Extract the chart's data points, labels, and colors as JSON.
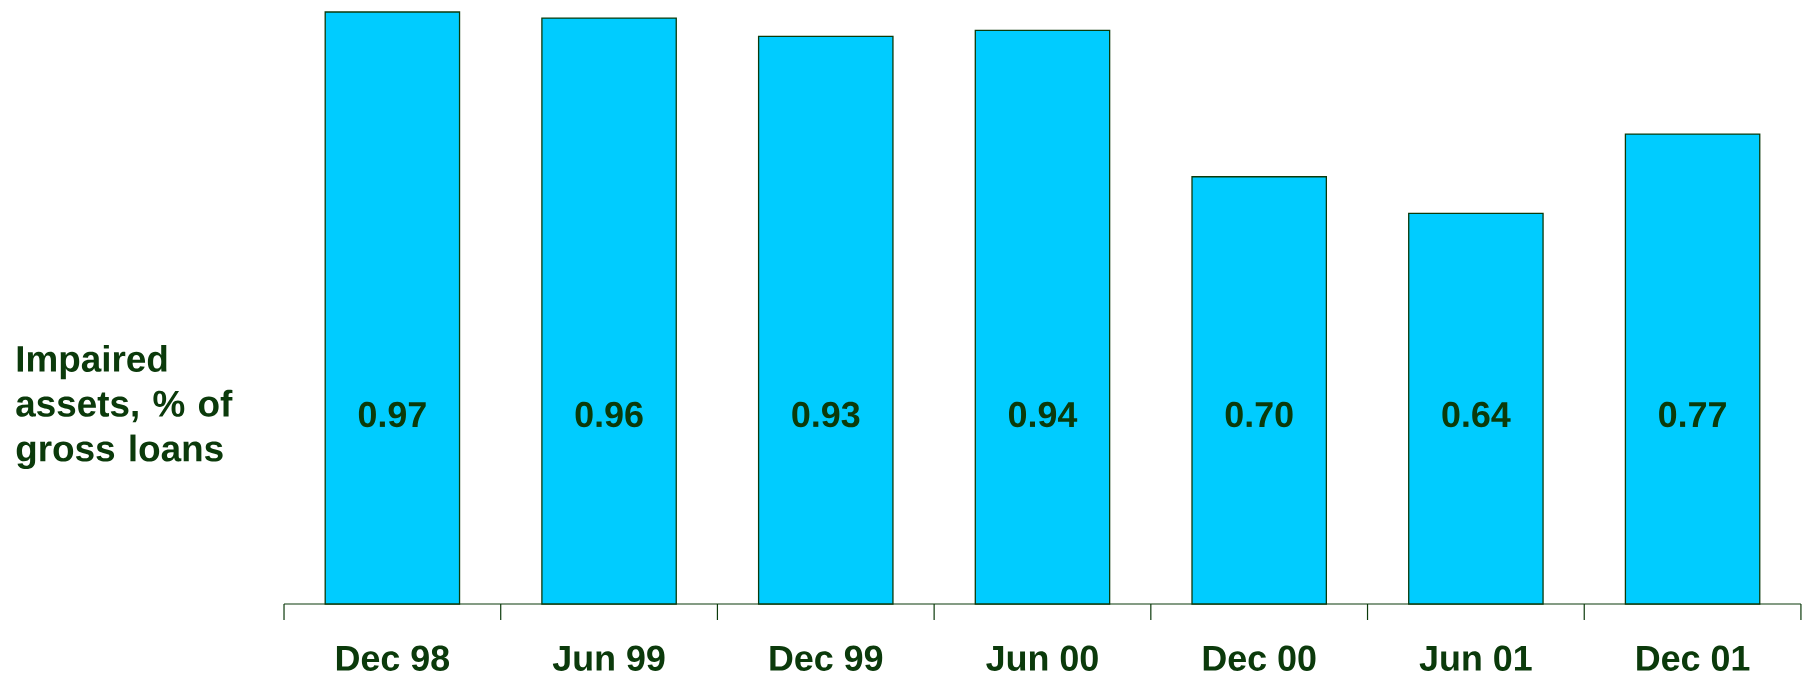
{
  "chart_data": {
    "type": "bar",
    "ylabel": "Impaired assets, % of gross loans",
    "categories": [
      "Dec 98",
      "Jun 99",
      "Dec 99",
      "Jun 00",
      "Dec 00",
      "Jun 01",
      "Dec 01"
    ],
    "values": [
      0.97,
      0.96,
      0.93,
      0.94,
      0.7,
      0.64,
      0.77
    ],
    "value_labels": [
      "0.97",
      "0.96",
      "0.93",
      "0.94",
      "0.70",
      "0.64",
      "0.77"
    ],
    "color": "#00ccff"
  }
}
